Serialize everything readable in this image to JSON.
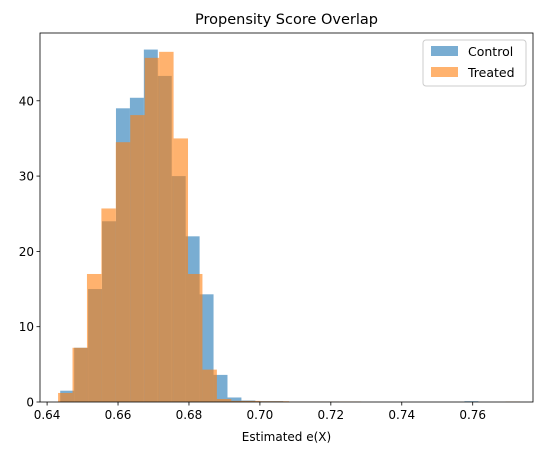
{
  "chart_data": {
    "type": "histogram",
    "title": "Propensity Score Overlap",
    "xlabel": "Estimated e(X)",
    "ylabel": "",
    "xlim": [
      0.638,
      0.777
    ],
    "ylim": [
      0,
      49
    ],
    "xticks": [
      0.64,
      0.66,
      0.68,
      0.7,
      0.72,
      0.74,
      0.76
    ],
    "xtick_labels": [
      "0.64",
      "0.66",
      "0.68",
      "0.70",
      "0.72",
      "0.74",
      "0.76"
    ],
    "yticks": [
      0,
      10,
      20,
      30,
      40
    ],
    "ytick_labels": [
      "0",
      "10",
      "20",
      "30",
      "40"
    ],
    "grid": false,
    "legend_position": "top-right",
    "opacity": 0.6,
    "series": [
      {
        "name": "Control",
        "color": "#1f77b4",
        "bin_start": 0.6437,
        "bin_width": 0.00393,
        "values": [
          1.5,
          7.2,
          15,
          24,
          39,
          40.4,
          46.8,
          43.3,
          30,
          22,
          14.3,
          3.6,
          0.6,
          0.2,
          0.1,
          0.1,
          0.05,
          0.05,
          0.05,
          0.05,
          0,
          0,
          0,
          0,
          0,
          0,
          0,
          0,
          0,
          0.1,
          0,
          0,
          0
        ]
      },
      {
        "name": "Treated",
        "color": "#ff7f0e",
        "bin_start": 0.6431,
        "bin_width": 0.00407,
        "values": [
          1.2,
          7.2,
          17,
          25.7,
          34.5,
          38.1,
          45.7,
          46.5,
          35,
          17,
          4.3,
          0.4,
          0.15,
          0.15,
          0.1,
          0.1,
          0.05,
          0.05,
          0.05,
          0.05,
          0.05,
          0,
          0,
          0,
          0,
          0,
          0,
          0,
          0,
          0,
          0,
          0.05
        ]
      }
    ]
  }
}
